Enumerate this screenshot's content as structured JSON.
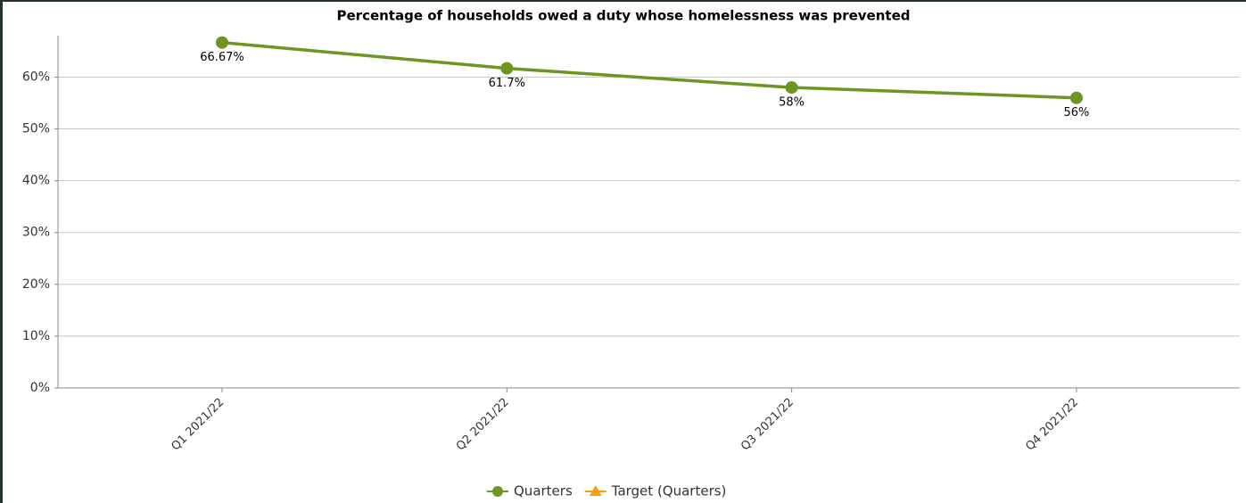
{
  "chart_data": {
    "type": "line",
    "title": "Percentage of households owed a duty whose homelessness was prevented",
    "categories": [
      "Q1 2021/22",
      "Q2 2021/22",
      "Q3 2021/22",
      "Q4 2021/22"
    ],
    "series": [
      {
        "name": "Quarters",
        "color": "#6e9423",
        "values": [
          66.67,
          61.7,
          58,
          56
        ],
        "value_labels": [
          "66.67%",
          "61.7%",
          "58%",
          "56%"
        ]
      },
      {
        "name": "Target (Quarters)",
        "color": "#f5a00f",
        "values": [
          null,
          null,
          null,
          null
        ]
      }
    ],
    "ylim": [
      0,
      68
    ],
    "yticks": [
      {
        "value": 0,
        "label": "0%"
      },
      {
        "value": 10,
        "label": "10%"
      },
      {
        "value": 20,
        "label": "20%"
      },
      {
        "value": 30,
        "label": "30%"
      },
      {
        "value": 40,
        "label": "40%"
      },
      {
        "value": 50,
        "label": "50%"
      },
      {
        "value": 60,
        "label": "60%"
      }
    ],
    "grid": true
  }
}
